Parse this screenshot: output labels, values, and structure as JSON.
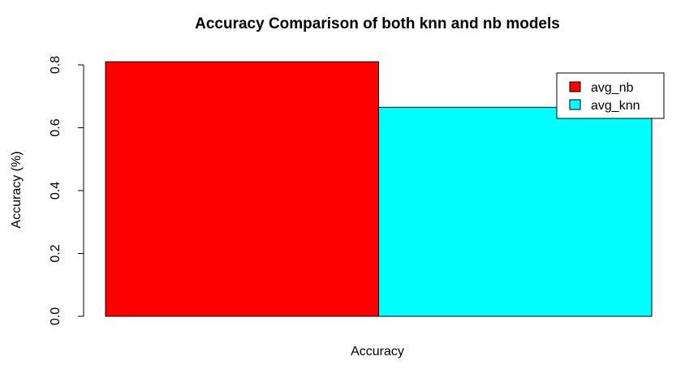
{
  "chart_data": {
    "type": "bar",
    "title": "Accuracy Comparison of both knn and nb models",
    "xlabel": "Accuracy",
    "ylabel": "Accuracy (%)",
    "ylim": [
      0,
      0.8
    ],
    "y_ticks": [
      "0.0",
      "0.2",
      "0.4",
      "0.6",
      "0.8"
    ],
    "series": [
      {
        "name": "avg_nb",
        "value": 0.81,
        "color": "#ff0000"
      },
      {
        "name": "avg_knn",
        "value": 0.665,
        "color": "#00ffff"
      }
    ],
    "legend": {
      "position": "top-right",
      "items": [
        "avg_nb",
        "avg_knn"
      ]
    }
  }
}
